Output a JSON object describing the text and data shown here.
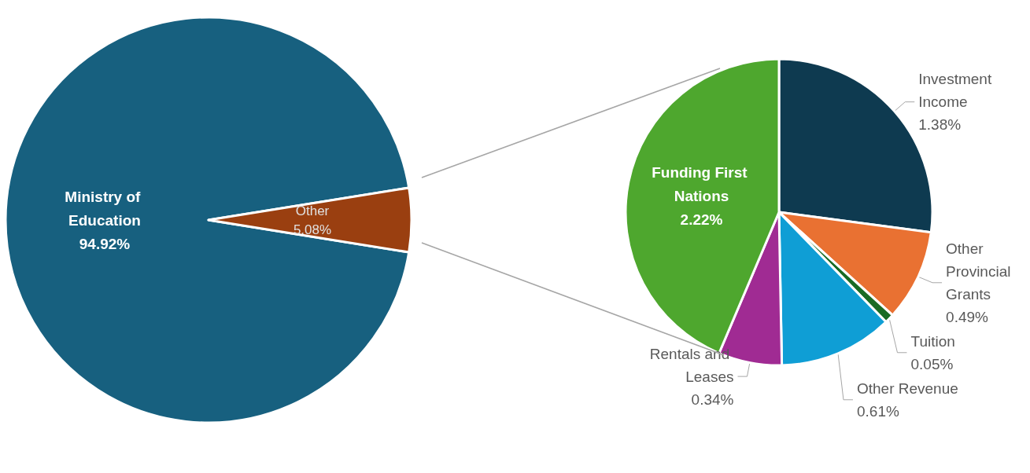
{
  "chart_data": [
    {
      "type": "pie",
      "categories": [
        "Ministry of Education",
        "Other"
      ],
      "values": [
        94.92,
        5.08
      ],
      "value_labels": [
        "94.92%",
        "5.08%"
      ],
      "colors": [
        "#17607f",
        "#9a3f10"
      ],
      "legend": false
    },
    {
      "type": "pie",
      "categories": [
        "Investment Income",
        "Other Provincial Grants",
        "Tuition",
        "Other Revenue",
        "Rentals and Leases",
        "Funding First Nations"
      ],
      "values": [
        1.38,
        0.49,
        0.05,
        0.61,
        0.34,
        2.22
      ],
      "value_labels": [
        "1.38%",
        "0.49%",
        "0.05%",
        "0.61%",
        "0.34%",
        "2.22%"
      ],
      "colors": [
        "#0e3a50",
        "#e97132",
        "#196b24",
        "#0f9ed5",
        "#a02b93",
        "#4ea72e"
      ],
      "legend": false
    }
  ]
}
